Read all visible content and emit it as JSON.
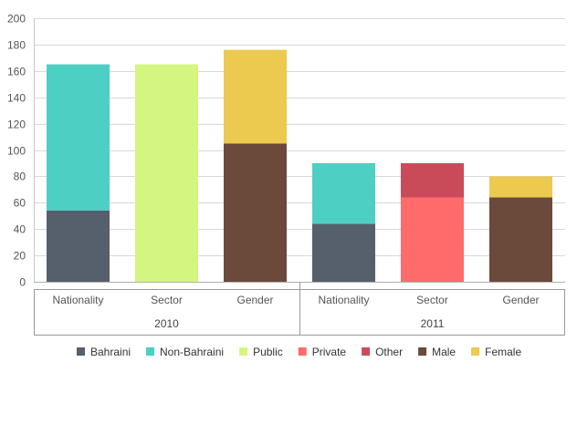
{
  "chart_data": {
    "type": "bar",
    "stacked": true,
    "ylim": [
      0,
      200
    ],
    "yticks": [
      "0",
      "20",
      "40",
      "60",
      "80",
      "100",
      "120",
      "140",
      "160",
      "180",
      "200"
    ],
    "grid": true,
    "legend_position": "bottom",
    "groups": [
      {
        "label": "2010",
        "categories": [
          {
            "label": "Nationality",
            "segments": [
              {
                "series": "Bahraini",
                "value": 54
              },
              {
                "series": "Non-Bahraini",
                "value": 111
              }
            ]
          },
          {
            "label": "Sector",
            "segments": [
              {
                "series": "Public",
                "value": 165
              }
            ]
          },
          {
            "label": "Gender",
            "segments": [
              {
                "series": "Male",
                "value": 105
              },
              {
                "series": "Female",
                "value": 71
              }
            ]
          }
        ]
      },
      {
        "label": "2011",
        "categories": [
          {
            "label": "Nationality",
            "segments": [
              {
                "series": "Bahraini",
                "value": 44
              },
              {
                "series": "Non-Bahraini",
                "value": 46
              }
            ]
          },
          {
            "label": "Sector",
            "segments": [
              {
                "series": "Private",
                "value": 64
              },
              {
                "series": "Other",
                "value": 26
              }
            ]
          },
          {
            "label": "Gender",
            "segments": [
              {
                "series": "Male",
                "value": 64
              },
              {
                "series": "Female",
                "value": 16
              }
            ]
          }
        ]
      }
    ],
    "series": [
      {
        "name": "Bahraini",
        "color": "#55606c"
      },
      {
        "name": "Non-Bahraini",
        "color": "#4ecfc4"
      },
      {
        "name": "Public",
        "color": "#d4f580"
      },
      {
        "name": "Private",
        "color": "#ff6b6b"
      },
      {
        "name": "Other",
        "color": "#c94a59"
      },
      {
        "name": "Male",
        "color": "#6b4a3b"
      },
      {
        "name": "Female",
        "color": "#ecc94f"
      }
    ]
  }
}
